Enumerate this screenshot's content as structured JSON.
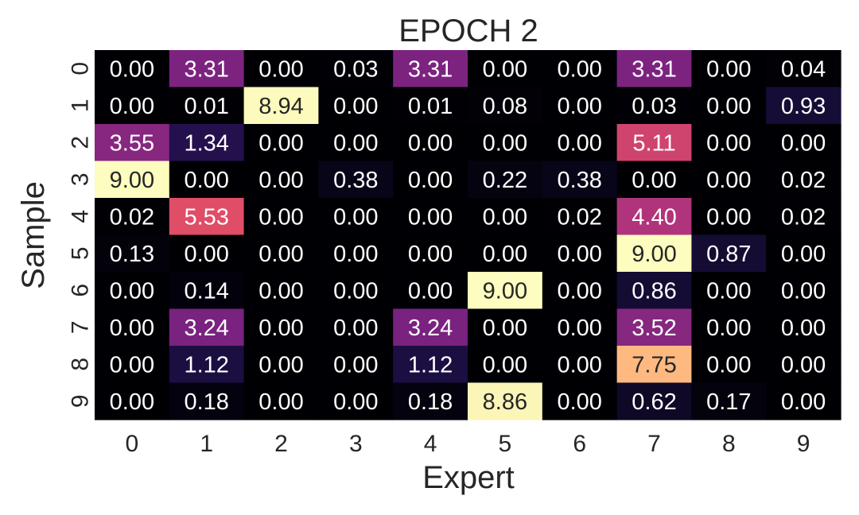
{
  "chart_data": {
    "type": "heatmap",
    "title": "EPOCH 2",
    "xlabel": "Expert",
    "ylabel": "Sample",
    "x_categories": [
      "0",
      "1",
      "2",
      "3",
      "4",
      "5",
      "6",
      "7",
      "8",
      "9"
    ],
    "y_categories": [
      "0",
      "1",
      "2",
      "3",
      "4",
      "5",
      "6",
      "7",
      "8",
      "9"
    ],
    "value_range": [
      0,
      9
    ],
    "colormap": "magma",
    "values": [
      [
        0.0,
        3.31,
        0.0,
        0.03,
        3.31,
        0.0,
        0.0,
        3.31,
        0.0,
        0.04
      ],
      [
        0.0,
        0.01,
        8.94,
        0.0,
        0.01,
        0.08,
        0.0,
        0.03,
        0.0,
        0.93
      ],
      [
        3.55,
        1.34,
        0.0,
        0.0,
        0.0,
        0.0,
        0.0,
        5.11,
        0.0,
        0.0
      ],
      [
        9.0,
        0.0,
        0.0,
        0.38,
        0.0,
        0.22,
        0.38,
        0.0,
        0.0,
        0.02
      ],
      [
        0.02,
        5.53,
        0.0,
        0.0,
        0.0,
        0.0,
        0.02,
        4.4,
        0.0,
        0.02
      ],
      [
        0.13,
        0.0,
        0.0,
        0.0,
        0.0,
        0.0,
        0.0,
        9.0,
        0.87,
        0.0
      ],
      [
        0.0,
        0.14,
        0.0,
        0.0,
        0.0,
        9.0,
        0.0,
        0.86,
        0.0,
        0.0
      ],
      [
        0.0,
        3.24,
        0.0,
        0.0,
        3.24,
        0.0,
        0.0,
        3.52,
        0.0,
        0.0
      ],
      [
        0.0,
        1.12,
        0.0,
        0.0,
        1.12,
        0.0,
        0.0,
        7.75,
        0.0,
        0.0
      ],
      [
        0.0,
        0.18,
        0.0,
        0.0,
        0.18,
        8.86,
        0.0,
        0.62,
        0.17,
        0.0
      ]
    ],
    "legend": "none",
    "grid": false
  }
}
